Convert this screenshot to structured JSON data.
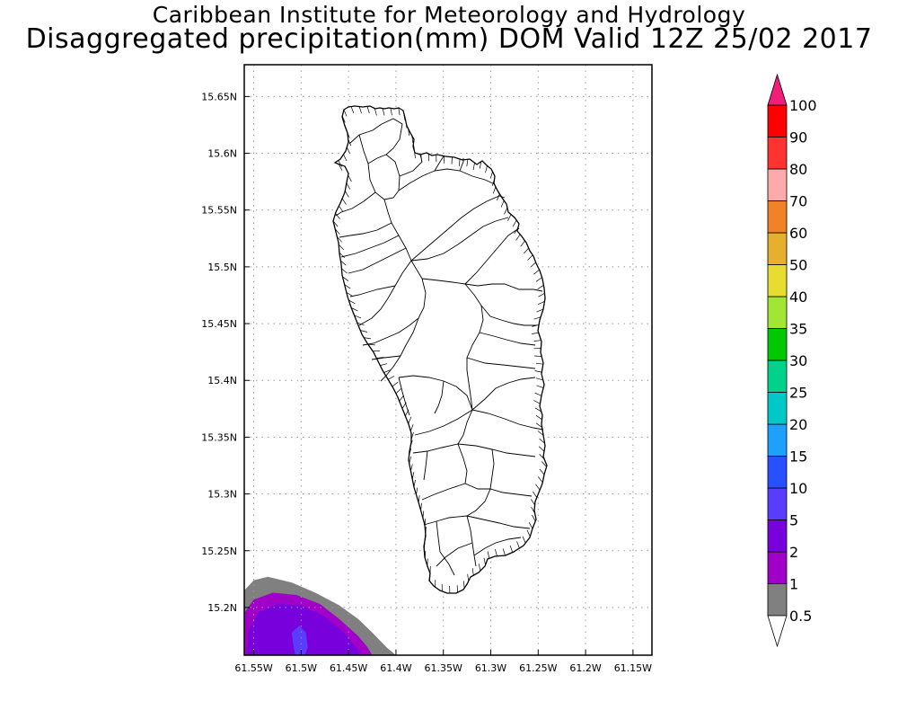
{
  "header": {
    "line1": "Caribbean Institute for Meteorology and Hydrology",
    "line2": "Disaggregated precipitation(mm) DOM Valid 12Z 25/02 2017"
  },
  "map": {
    "lon_range": [
      -61.56,
      -61.13
    ],
    "lat_range": [
      15.158,
      15.678
    ],
    "lon_ticks": [
      {
        "v": -61.55,
        "label": "61.55W"
      },
      {
        "v": -61.5,
        "label": "61.5W"
      },
      {
        "v": -61.45,
        "label": "61.45W"
      },
      {
        "v": -61.4,
        "label": "61.4W"
      },
      {
        "v": -61.35,
        "label": "61.35W"
      },
      {
        "v": -61.3,
        "label": "61.3W"
      },
      {
        "v": -61.25,
        "label": "61.25W"
      },
      {
        "v": -61.2,
        "label": "61.2W"
      },
      {
        "v": -61.15,
        "label": "61.15W"
      }
    ],
    "lat_ticks": [
      {
        "v": 15.2,
        "label": "15.2N"
      },
      {
        "v": 15.25,
        "label": "15.25N"
      },
      {
        "v": 15.3,
        "label": "15.3N"
      },
      {
        "v": 15.35,
        "label": "15.35N"
      },
      {
        "v": 15.4,
        "label": "15.4N"
      },
      {
        "v": 15.45,
        "label": "15.45N"
      },
      {
        "v": 15.5,
        "label": "15.5N"
      },
      {
        "v": 15.55,
        "label": "15.55N"
      },
      {
        "v": 15.6,
        "label": "15.6N"
      },
      {
        "v": 15.65,
        "label": "15.65N"
      }
    ],
    "grid": true
  },
  "colorbar": {
    "labels": [
      "0.5",
      "1",
      "2",
      "5",
      "10",
      "15",
      "20",
      "25",
      "30",
      "35",
      "40",
      "50",
      "60",
      "70",
      "80",
      "90",
      "100"
    ],
    "colors": [
      "#808080",
      "#a000c8",
      "#7800dc",
      "#5a3cff",
      "#2850ff",
      "#1ea0ff",
      "#00c8c8",
      "#00d28c",
      "#00c800",
      "#a0e632",
      "#e6dc32",
      "#e6af2d",
      "#f08228",
      "#ffaaaa",
      "#ff3232",
      "#ff0000",
      "#f04664"
    ],
    "top_arrow_color": "#f01e78",
    "bottom_arrow_color": "#ffffff"
  },
  "precip_contours": [
    {
      "level": 0.5,
      "color": "#808080",
      "points": [
        [
          -61.56,
          15.158
        ],
        [
          -61.56,
          15.215
        ],
        [
          -61.55,
          15.224
        ],
        [
          -61.535,
          15.227
        ],
        [
          -61.51,
          15.222
        ],
        [
          -61.485,
          15.213
        ],
        [
          -61.46,
          15.202
        ],
        [
          -61.44,
          15.19
        ],
        [
          -61.425,
          15.178
        ],
        [
          -61.41,
          15.165
        ],
        [
          -61.4,
          15.158
        ]
      ]
    },
    {
      "level": 1,
      "color": "#a000c8",
      "points": [
        [
          -61.56,
          15.158
        ],
        [
          -61.56,
          15.195
        ],
        [
          -61.55,
          15.207
        ],
        [
          -61.53,
          15.213
        ],
        [
          -61.505,
          15.211
        ],
        [
          -61.48,
          15.203
        ],
        [
          -61.46,
          15.19
        ],
        [
          -61.44,
          15.175
        ],
        [
          -61.43,
          15.165
        ],
        [
          -61.425,
          15.158
        ]
      ]
    },
    {
      "level": 2,
      "color": "#7800dc",
      "points": [
        [
          -61.557,
          15.158
        ],
        [
          -61.555,
          15.18
        ],
        [
          -61.545,
          15.196
        ],
        [
          -61.525,
          15.203
        ],
        [
          -61.5,
          15.202
        ],
        [
          -61.475,
          15.192
        ],
        [
          -61.455,
          15.178
        ],
        [
          -61.442,
          15.165
        ],
        [
          -61.437,
          15.158
        ]
      ]
    },
    {
      "level": 5,
      "color": "#5a3cff",
      "points": [
        [
          -61.508,
          15.165
        ],
        [
          -61.51,
          15.178
        ],
        [
          -61.502,
          15.184
        ],
        [
          -61.495,
          15.178
        ],
        [
          -61.493,
          15.165
        ],
        [
          -61.496,
          15.158
        ],
        [
          -61.506,
          15.158
        ]
      ]
    }
  ]
}
